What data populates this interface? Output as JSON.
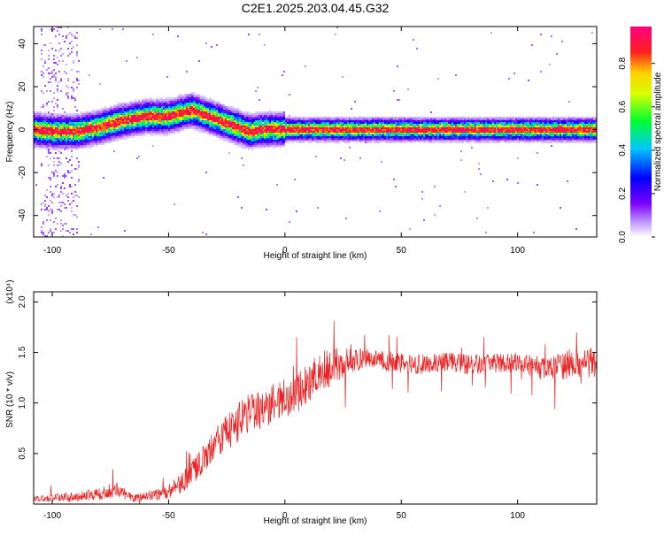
{
  "title": "C2E1.2025.203.04.45.G32",
  "colors": {
    "snr_line": "#ee2222",
    "background": "#ffffff",
    "axis": "#000000"
  },
  "chart_data": [
    {
      "type": "heatmap",
      "xlabel": "Height of straight line (km)",
      "ylabel": "Frequency (Hz)",
      "xlim": [
        -108,
        134
      ],
      "ylim": [
        -50,
        48
      ],
      "xticks": [
        -100,
        -50,
        0,
        50,
        100
      ],
      "yticks": [
        -40,
        -20,
        0,
        20,
        40
      ],
      "colorbar": {
        "label": "Normalized spectral amplitude",
        "range": [
          0,
          0.97
        ],
        "ticks": [
          "0.0",
          "0.2",
          "0.4",
          "0.6",
          "0.8"
        ],
        "colormap": "rainbow (white-purple-blue-cyan-green-yellow-red-magenta)"
      },
      "ridge": {
        "description": "frequency of spectral peak vs height",
        "x": [
          -108,
          -100,
          -90,
          -80,
          -70,
          -60,
          -50,
          -40,
          -35,
          -30,
          -25,
          -20,
          -15,
          -10,
          0,
          10,
          20,
          30,
          50,
          70,
          90,
          110,
          134
        ],
        "y": [
          0,
          -1,
          -1,
          1,
          4,
          6,
          6,
          9,
          7,
          5,
          3,
          1,
          -1,
          0,
          0,
          0,
          0,
          0,
          0,
          0,
          0,
          0,
          0
        ]
      },
      "grid": false
    },
    {
      "type": "line",
      "xlabel": "Height of straight line (km)",
      "ylabel": "SNR (10 * v/v)",
      "yscale_label": "(x10⁴)",
      "xlim": [
        -108,
        134
      ],
      "ylim": [
        0,
        2.1
      ],
      "xticks": [
        -100,
        -50,
        0,
        50,
        100
      ],
      "yticks": [
        0.5,
        1.0,
        1.5,
        2.0
      ],
      "series": [
        {
          "x": [
            -108,
            -100,
            -90,
            -80,
            -72,
            -65,
            -60,
            -50,
            -45,
            -40,
            -35,
            -30,
            -25,
            -20,
            -15,
            -10,
            -5,
            0,
            5,
            10,
            15,
            20,
            25,
            30,
            35,
            40,
            50,
            60,
            70,
            80,
            90,
            100,
            110,
            120,
            130,
            134
          ],
          "y": [
            0.05,
            0.06,
            0.07,
            0.1,
            0.15,
            0.05,
            0.08,
            0.12,
            0.2,
            0.3,
            0.45,
            0.6,
            0.7,
            0.8,
            0.9,
            0.95,
            1.0,
            1.05,
            1.1,
            1.2,
            1.3,
            1.35,
            1.4,
            1.42,
            1.45,
            1.42,
            1.4,
            1.38,
            1.4,
            1.38,
            1.4,
            1.4,
            1.35,
            1.38,
            1.4,
            1.4
          ],
          "amplitude": [
            0.03,
            0.04,
            0.05,
            0.06,
            0.08,
            0.04,
            0.05,
            0.07,
            0.1,
            0.12,
            0.14,
            0.16,
            0.18,
            0.2,
            0.2,
            0.2,
            0.2,
            0.2,
            0.2,
            0.2,
            0.2,
            0.2,
            0.15,
            0.12,
            0.1,
            0.1,
            0.1,
            0.1,
            0.1,
            0.1,
            0.1,
            0.1,
            0.12,
            0.15,
            0.15,
            0.15
          ]
        }
      ],
      "grid": false
    }
  ]
}
